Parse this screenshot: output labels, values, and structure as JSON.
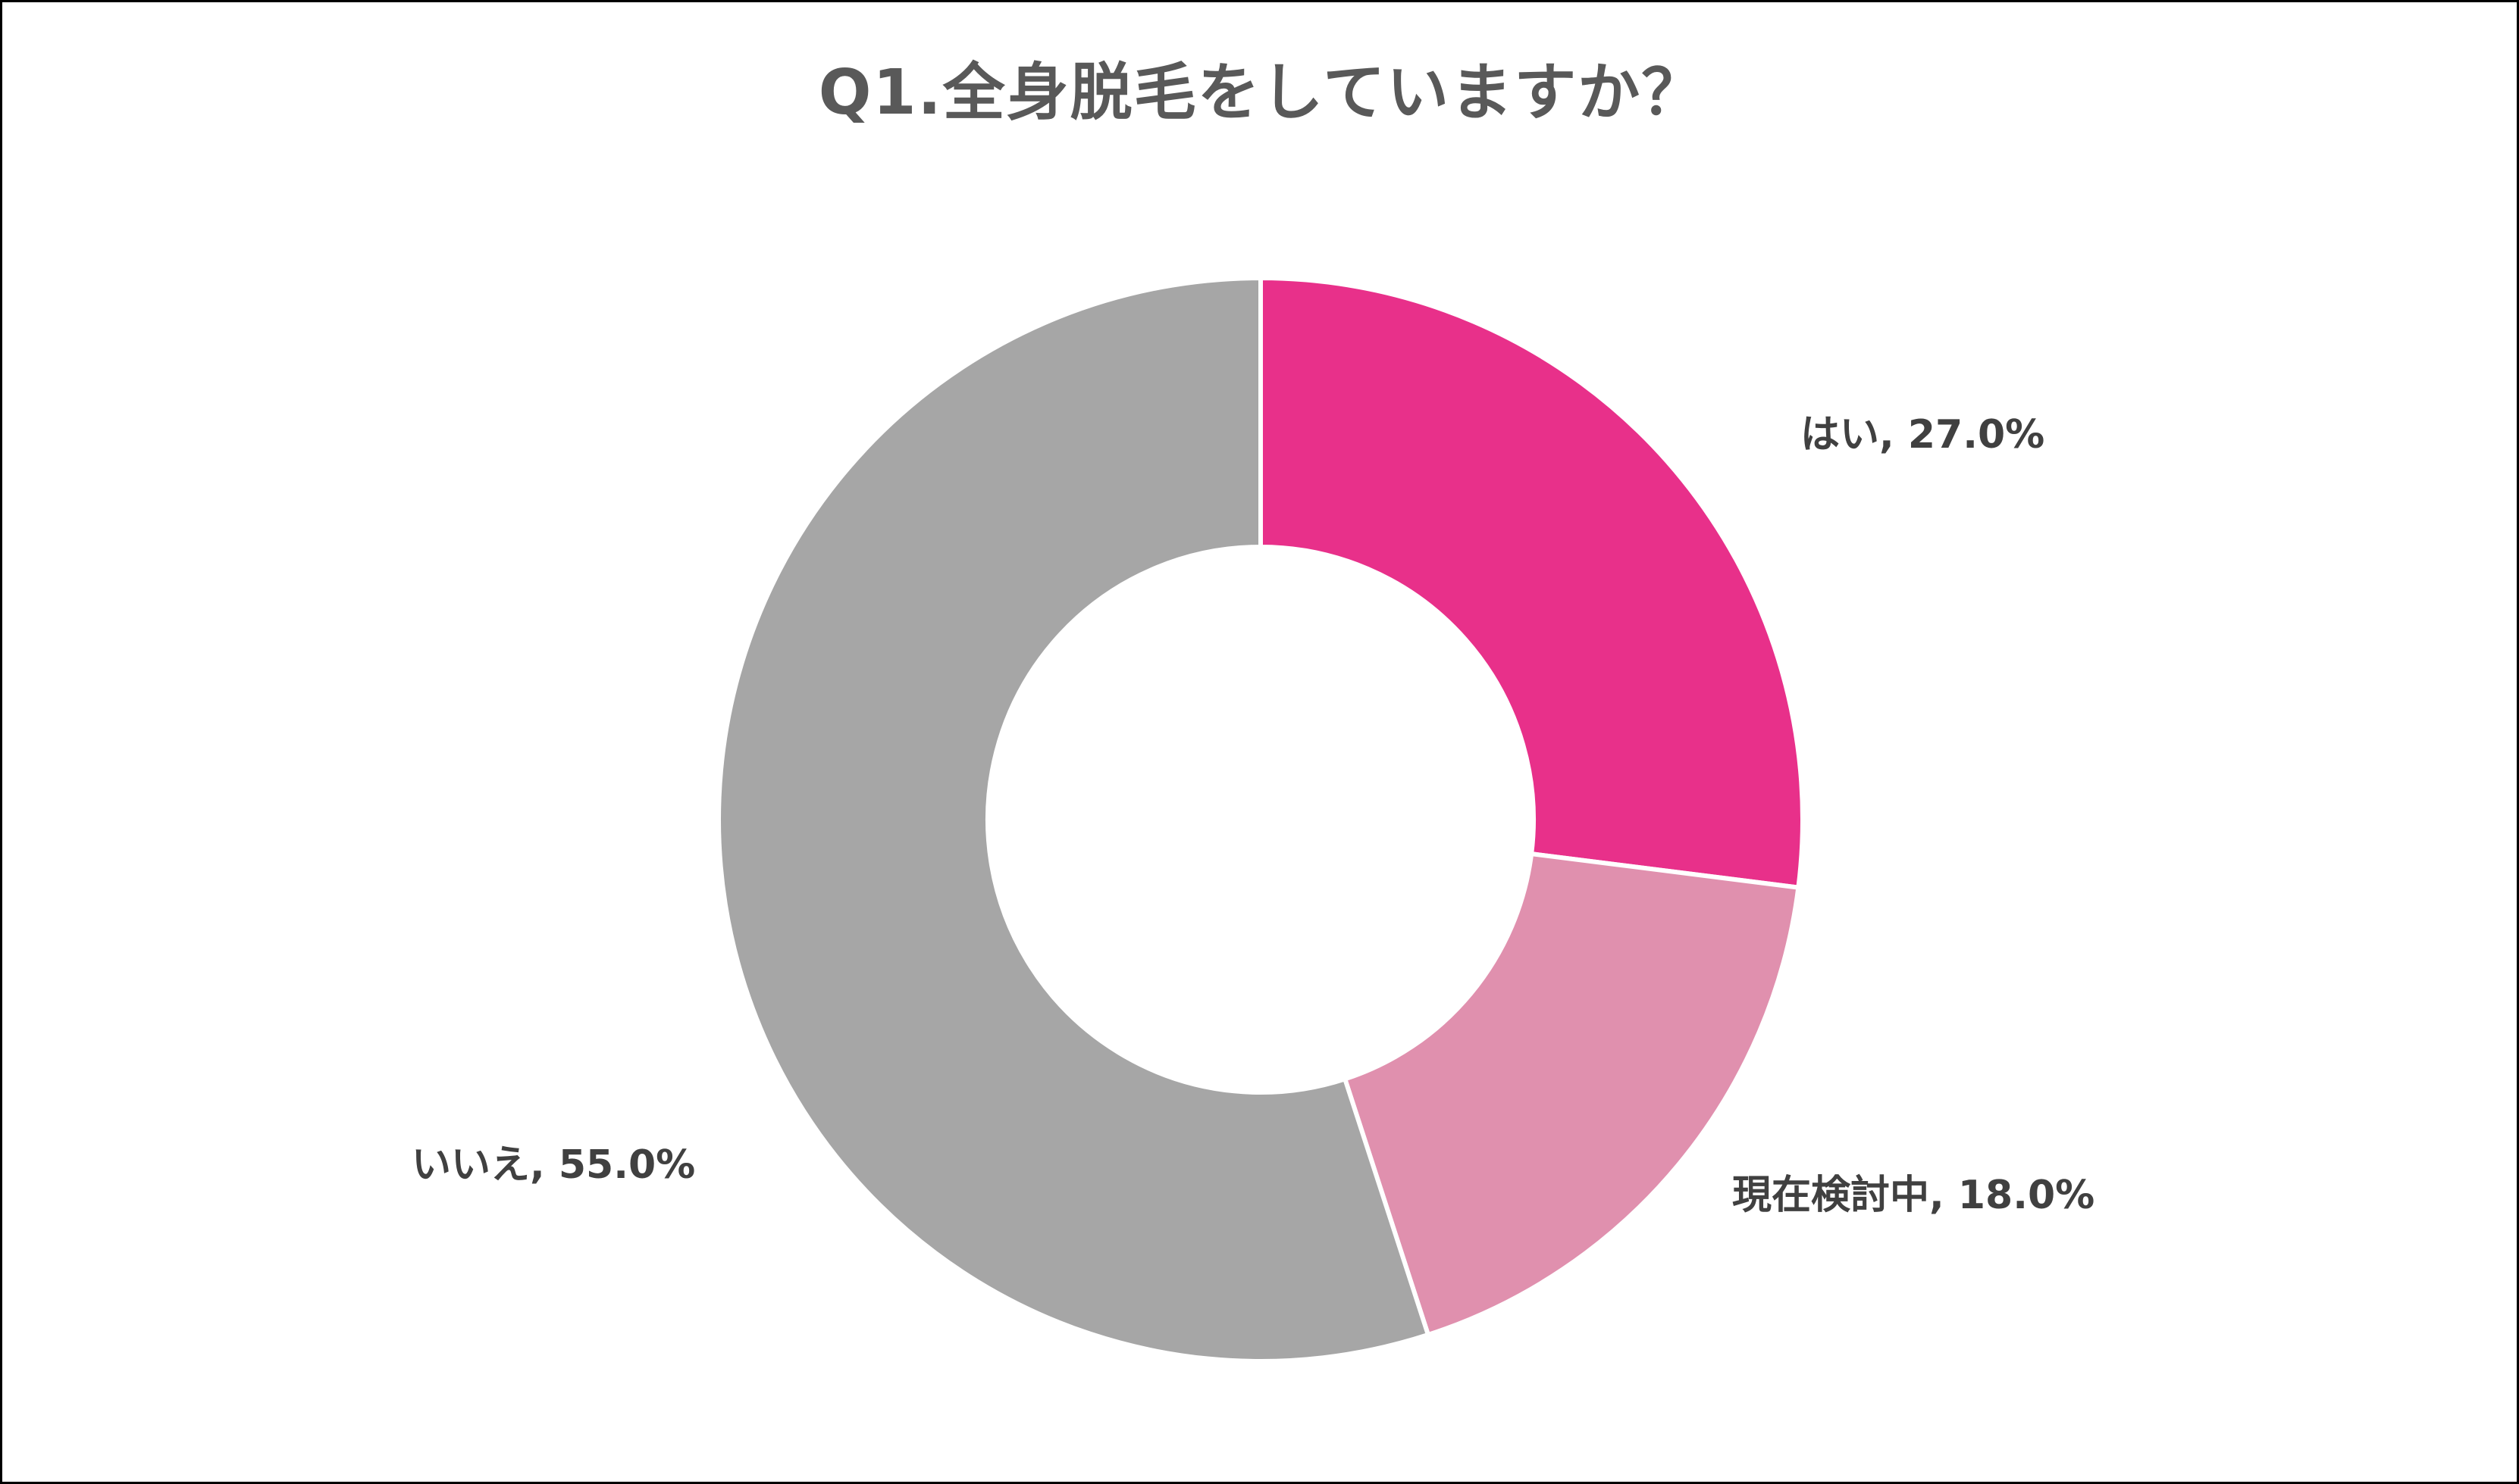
{
  "chart_data": {
    "type": "pie",
    "style": "donut",
    "title": "Q1.全身脱毛をしていますか？",
    "categories": [
      "はい",
      "現在検討中",
      "いいえ"
    ],
    "values": [
      27.0,
      18.0,
      55.0
    ],
    "unit": "%",
    "colors": [
      "#E8308A",
      "#E090AE",
      "#A6A6A6"
    ],
    "labels": [
      "はい, 27.0%",
      "現在検討中, 18.0%",
      "いいえ, 55.0%"
    ],
    "legend": "none",
    "start_angle": "12 o'clock",
    "direction": "clockwise"
  }
}
